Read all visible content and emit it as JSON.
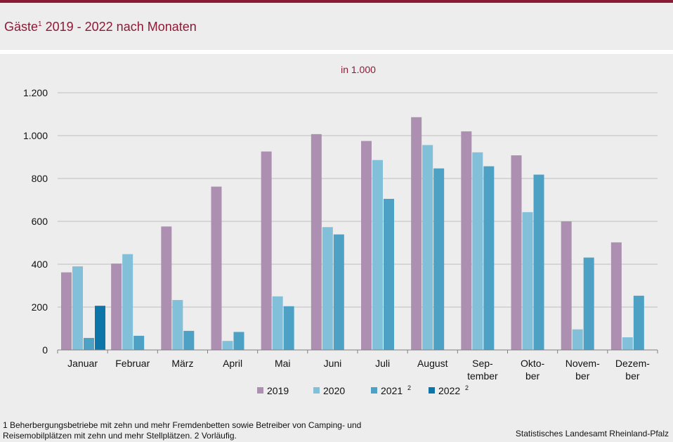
{
  "title": {
    "text_pre": "Gäste",
    "sup": "1",
    "text_post": " 2019 - 2022 nach Monaten"
  },
  "colors": {
    "brand": "#8a1b37",
    "grid": "#bfbfbf",
    "axis": "#808080"
  },
  "chart_data": {
    "type": "bar",
    "title": "Gäste 2019 - 2022 nach Monaten",
    "subtitle": "in 1.000",
    "xlabel": "",
    "ylabel": "in 1.000",
    "ylim": [
      0,
      1200
    ],
    "yticks": [
      0,
      200,
      400,
      600,
      800,
      1000,
      1200
    ],
    "ytick_labels": [
      "0",
      "200",
      "400",
      "600",
      "800",
      "1.000",
      "1.200"
    ],
    "grid": true,
    "legend_position": "bottom",
    "categories": [
      [
        "Januar"
      ],
      [
        "Februar"
      ],
      [
        "März"
      ],
      [
        "April"
      ],
      [
        "Mai"
      ],
      [
        "Juni"
      ],
      [
        "Juli"
      ],
      [
        "August"
      ],
      [
        "Sep-",
        "tember"
      ],
      [
        "Okto-",
        "ber"
      ],
      [
        "Novem-",
        "ber"
      ],
      [
        "Dezem-",
        "ber"
      ]
    ],
    "series": [
      {
        "name": "2019",
        "sup": "",
        "color": "#ac8fb1",
        "values": [
          362,
          403,
          576,
          762,
          926,
          1007,
          975,
          1086,
          1020,
          908,
          600,
          502
        ]
      },
      {
        "name": "2020",
        "sup": "",
        "color": "#82bfd9",
        "values": [
          390,
          447,
          233,
          42,
          250,
          573,
          886,
          956,
          922,
          643,
          96,
          59
        ]
      },
      {
        "name": "2021",
        "sup": "2",
        "color": "#4da1c4",
        "values": [
          56,
          66,
          89,
          84,
          204,
          539,
          705,
          847,
          857,
          818,
          431,
          253
        ]
      },
      {
        "name": "2022",
        "sup": "2",
        "color": "#0d75a8",
        "values": [
          206,
          null,
          null,
          null,
          null,
          null,
          null,
          null,
          null,
          null,
          null,
          null
        ]
      }
    ]
  },
  "footnote": {
    "line1": "1 Beherbergungsbetriebe  mit zehn und mehr Fremdenbetten  sowie Betreiber von Camping-  und",
    "line2": "Reisemobilplätzen  mit zehn und mehr Stellplätzen. 2 Vorläufig."
  },
  "source": "Statistisches Landesamt Rheinland-Pfalz"
}
